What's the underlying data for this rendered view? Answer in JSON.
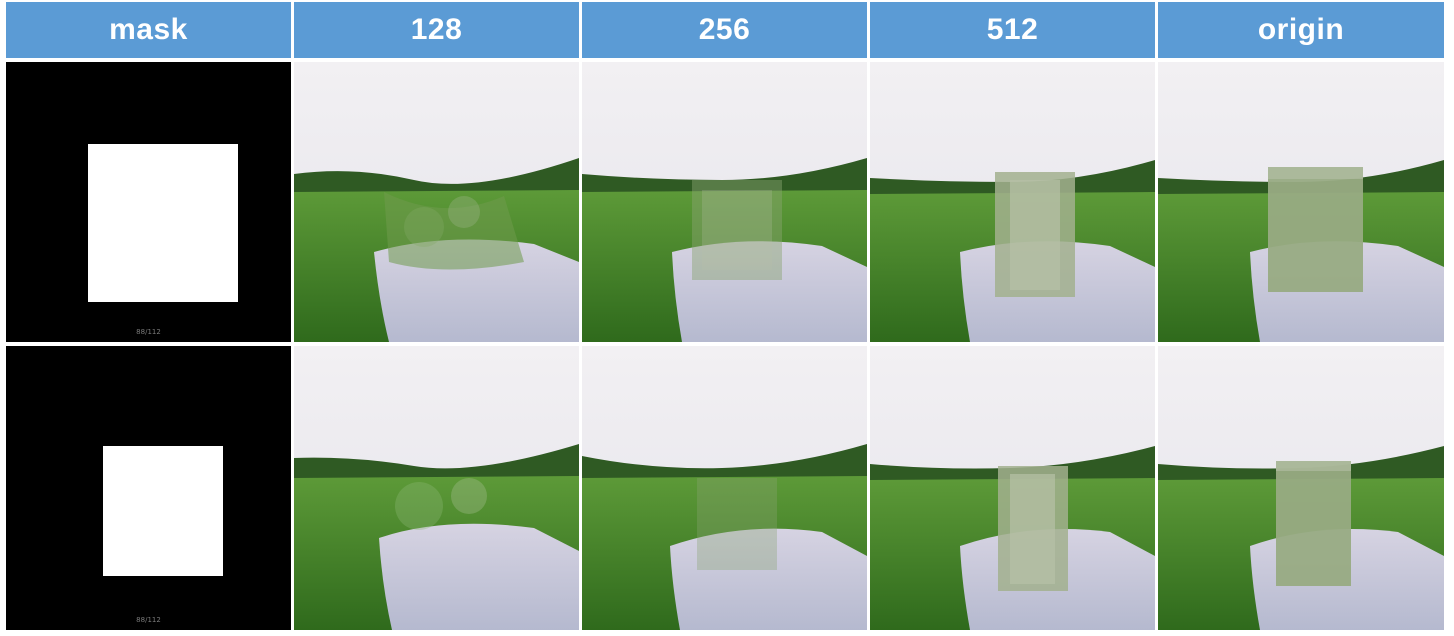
{
  "header": {
    "columns": [
      "mask",
      "128",
      "256",
      "512",
      "origin"
    ]
  },
  "rows": [
    {
      "mask_caption": "88/112"
    },
    {
      "mask_caption": "88/112"
    }
  ],
  "colors": {
    "header_bg": "#5b9bd5",
    "header_text": "#ffffff",
    "mask_bg": "#000000",
    "mask_fg": "#ffffff",
    "sky": "#ece9ee",
    "treeline": "#2f5a23",
    "grass": "#4f8e2f",
    "water": "#c9cbdc",
    "fill_patch": "#9fae8a"
  }
}
